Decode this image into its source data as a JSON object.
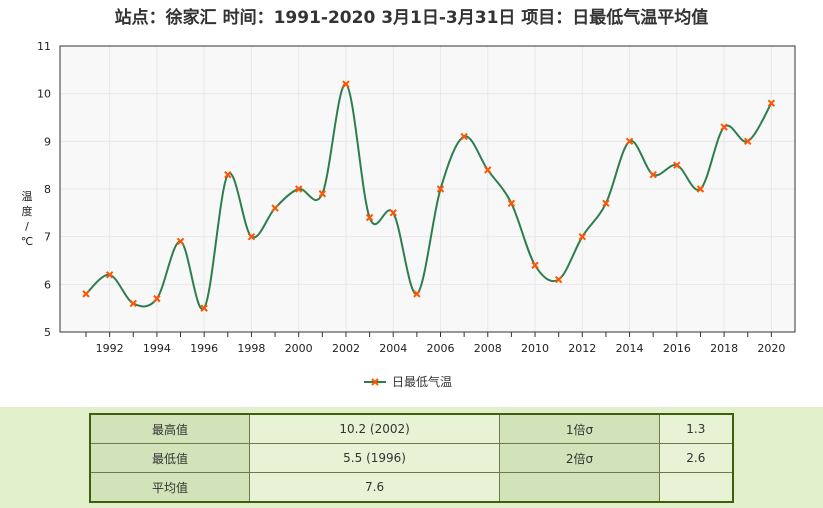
{
  "chart_data": {
    "type": "line",
    "title": "站点：徐家汇 时间：1991-2020 3月1日-3月31日 项目：日最低气温平均值",
    "ylabel": "温度/℃",
    "ylabel_chars": [
      "温",
      "度",
      "/",
      "℃"
    ],
    "x": [
      1991,
      1992,
      1993,
      1994,
      1995,
      1996,
      1997,
      1998,
      1999,
      2000,
      2001,
      2002,
      2003,
      2004,
      2005,
      2006,
      2007,
      2008,
      2009,
      2010,
      2011,
      2012,
      2013,
      2014,
      2015,
      2016,
      2017,
      2018,
      2019,
      2020
    ],
    "series": [
      {
        "name": "日最低气温",
        "values": [
          5.8,
          6.2,
          5.6,
          5.7,
          6.9,
          5.5,
          8.3,
          7.0,
          7.6,
          8.0,
          7.9,
          10.2,
          7.4,
          7.5,
          5.8,
          8.0,
          9.1,
          8.4,
          7.7,
          6.4,
          6.1,
          7.0,
          7.7,
          9.0,
          8.3,
          8.5,
          8.0,
          9.3,
          9.0,
          9.8
        ]
      }
    ],
    "xticks": [
      "1992",
      "1994",
      "1996",
      "1998",
      "2000",
      "2002",
      "2004",
      "2006",
      "2008",
      "2010",
      "2012",
      "2014",
      "2016",
      "2018",
      "2020"
    ],
    "yticks": [
      "5",
      "6",
      "7",
      "8",
      "9",
      "10",
      "11"
    ],
    "xlim": [
      1989.9,
      2021.0
    ],
    "ylim": [
      5,
      11
    ],
    "grid": true,
    "legend": "bottom-center",
    "colors": {
      "line": "#2e7d4f",
      "marker": "#ff5500",
      "grid": "#e8e8e8",
      "plot_bg": "#f8f8f8",
      "axis": "#333333"
    }
  },
  "stats": {
    "max_label": "最高值",
    "max_value": "10.2 (2002)",
    "min_label": "最低值",
    "min_value": "5.5 (1996)",
    "mean_label": "平均值",
    "mean_value": "7.6",
    "sigma1_label": "1倍σ",
    "sigma1_value": "1.3",
    "sigma2_label": "2倍σ",
    "sigma2_value": "2.6"
  }
}
